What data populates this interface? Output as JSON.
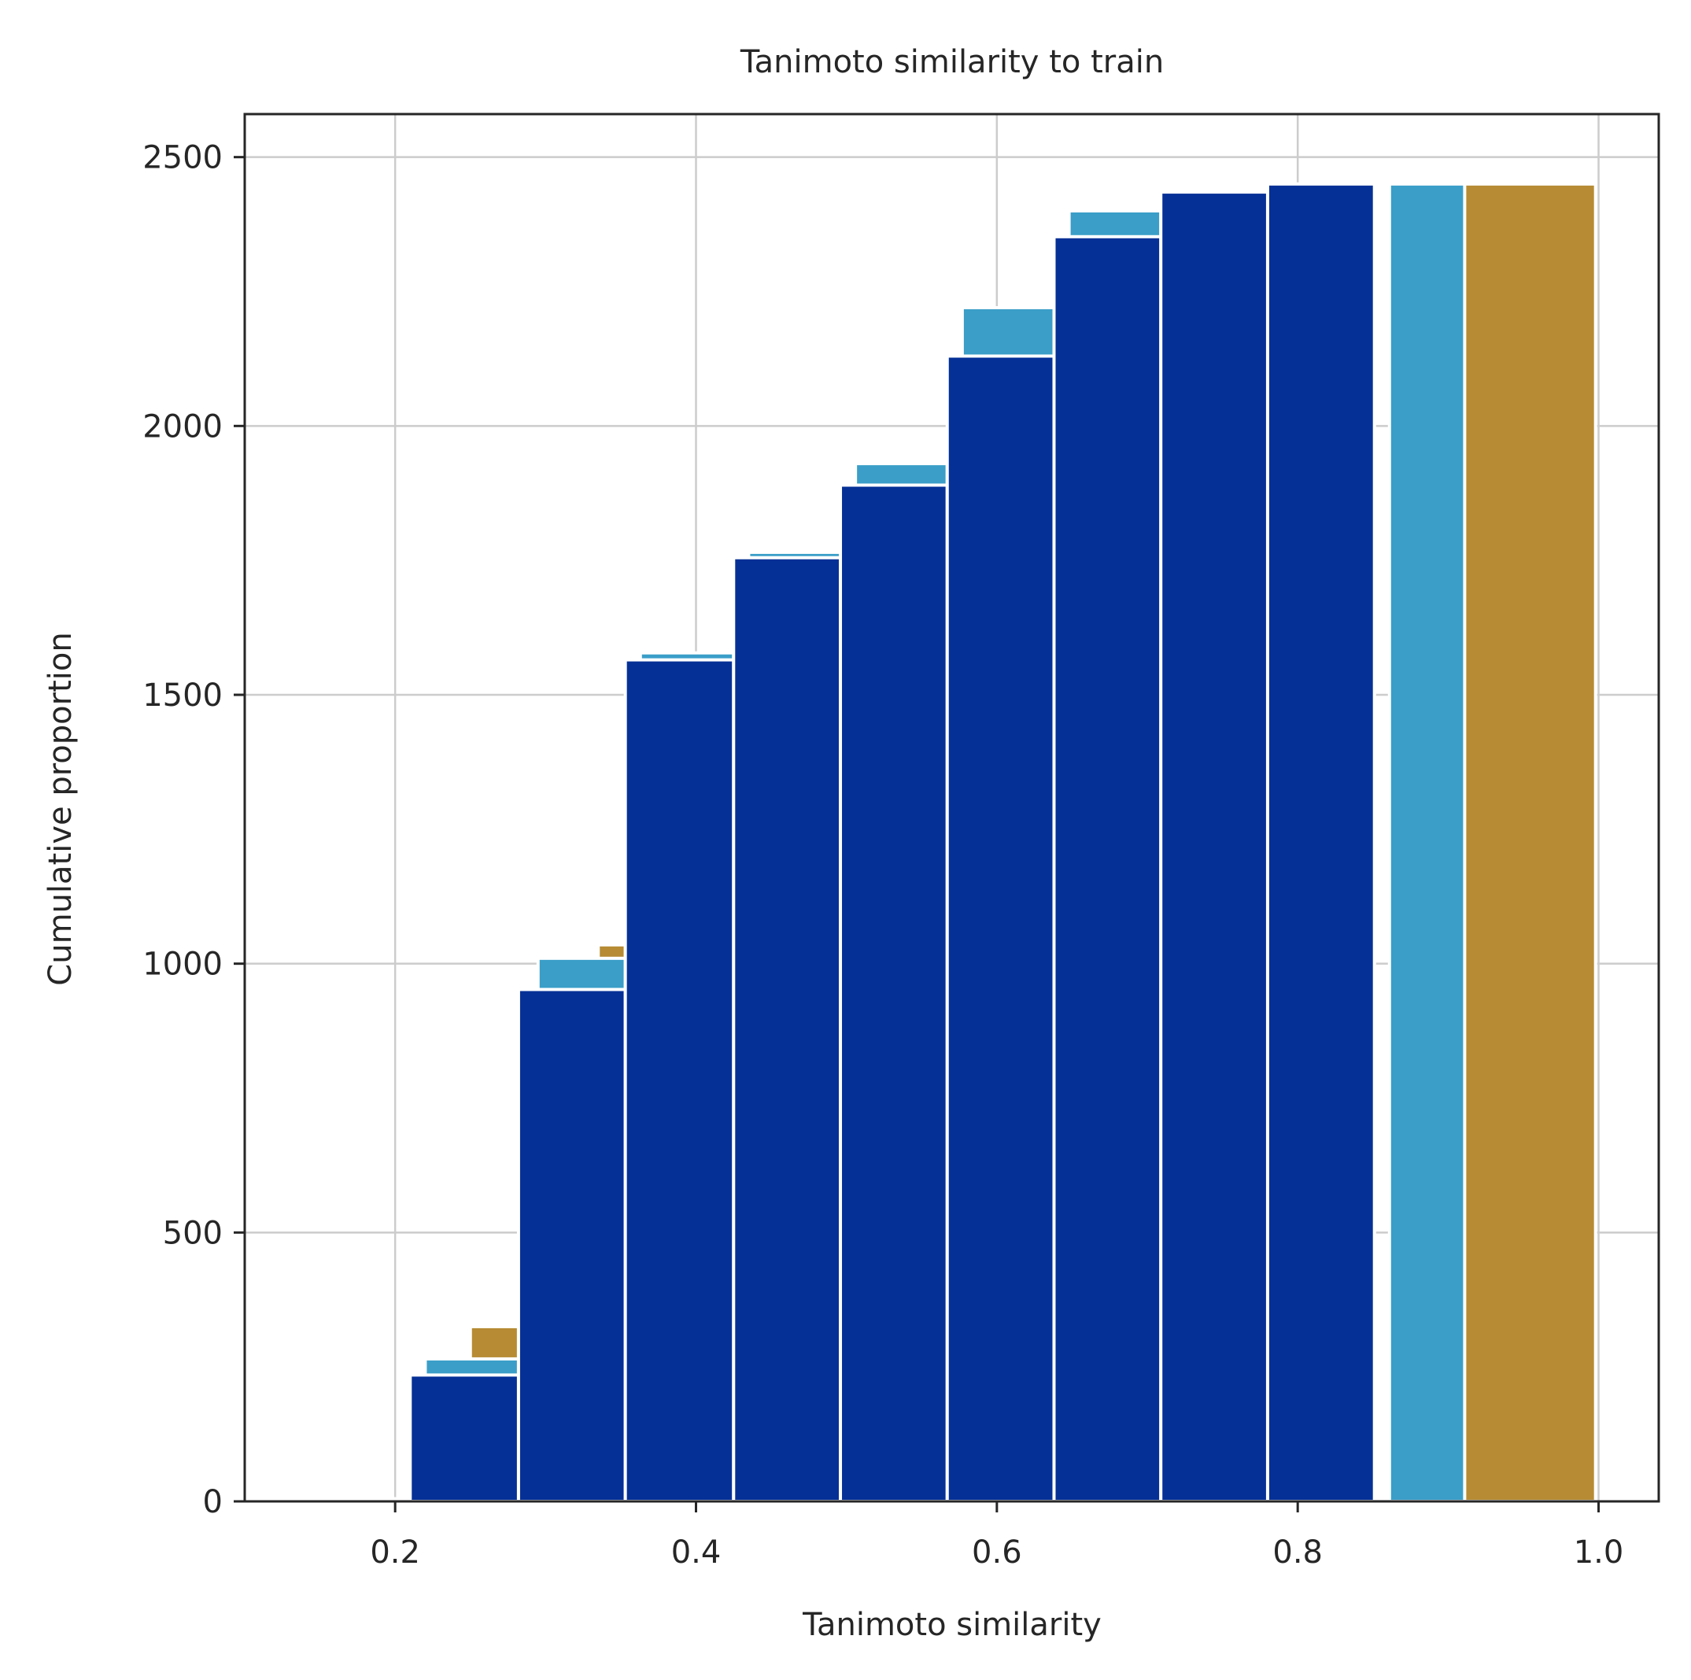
{
  "chart_data": {
    "type": "bar",
    "subtype": "cumulative histogram, three overlapping series",
    "title": "Tanimoto similarity to train",
    "xlabel": "Tanimoto similarity",
    "ylabel": "Cumulative proportion",
    "xlim": [
      0.1,
      1.04
    ],
    "ylim": [
      0,
      2580
    ],
    "x_ticks": [
      {
        "value": 0.2,
        "label": "0.2"
      },
      {
        "value": 0.4,
        "label": "0.4"
      },
      {
        "value": 0.6,
        "label": "0.6"
      },
      {
        "value": 0.8,
        "label": "0.8"
      },
      {
        "value": 1.0,
        "label": "1.0"
      }
    ],
    "y_ticks": [
      {
        "value": 0,
        "label": "0"
      },
      {
        "value": 500,
        "label": "500"
      },
      {
        "value": 1000,
        "label": "1000"
      },
      {
        "value": 1500,
        "label": "1500"
      },
      {
        "value": 2000,
        "label": "2000"
      },
      {
        "value": 2500,
        "label": "2500"
      }
    ],
    "grid": true,
    "legend": "none",
    "colors": {
      "series_1": "#053096",
      "series_2": "#3a9ec8",
      "series_3": "#b68b34",
      "axes": "#262626",
      "grid": "#cccccc",
      "bar_edge": "#ffffff"
    },
    "series": [
      {
        "color": "#b68b34",
        "bins": [
          {
            "x0": 0.25,
            "x1": 0.282,
            "y": 325
          },
          {
            "x0": 0.335,
            "x1": 0.353,
            "y": 1035
          },
          {
            "x0": 0.907,
            "x1": 0.998,
            "y": 2450
          }
        ]
      },
      {
        "color": "#3a9ec8",
        "bins": [
          {
            "x0": 0.143,
            "x1": 0.208,
            "y": 5
          },
          {
            "x0": 0.22,
            "x1": 0.282,
            "y": 265
          },
          {
            "x0": 0.295,
            "x1": 0.353,
            "y": 1010
          },
          {
            "x0": 0.363,
            "x1": 0.425,
            "y": 1578
          },
          {
            "x0": 0.435,
            "x1": 0.496,
            "y": 1765
          },
          {
            "x0": 0.506,
            "x1": 0.567,
            "y": 1930
          },
          {
            "x0": 0.577,
            "x1": 0.638,
            "y": 2220
          },
          {
            "x0": 0.648,
            "x1": 0.709,
            "y": 2400
          },
          {
            "x0": 0.719,
            "x1": 0.78,
            "y": 2435
          },
          {
            "x0": 0.79,
            "x1": 0.851,
            "y": 2450
          },
          {
            "x0": 0.861,
            "x1": 0.911,
            "y": 2450
          }
        ]
      },
      {
        "color": "#053096",
        "bins": [
          {
            "x0": 0.143,
            "x1": 0.21,
            "y": 3
          },
          {
            "x0": 0.21,
            "x1": 0.282,
            "y": 235
          },
          {
            "x0": 0.282,
            "x1": 0.353,
            "y": 952
          },
          {
            "x0": 0.353,
            "x1": 0.425,
            "y": 1565
          },
          {
            "x0": 0.425,
            "x1": 0.496,
            "y": 1755
          },
          {
            "x0": 0.496,
            "x1": 0.567,
            "y": 1890
          },
          {
            "x0": 0.567,
            "x1": 0.638,
            "y": 2130
          },
          {
            "x0": 0.638,
            "x1": 0.709,
            "y": 2352
          },
          {
            "x0": 0.709,
            "x1": 0.78,
            "y": 2435
          },
          {
            "x0": 0.78,
            "x1": 0.851,
            "y": 2450
          }
        ]
      }
    ]
  }
}
